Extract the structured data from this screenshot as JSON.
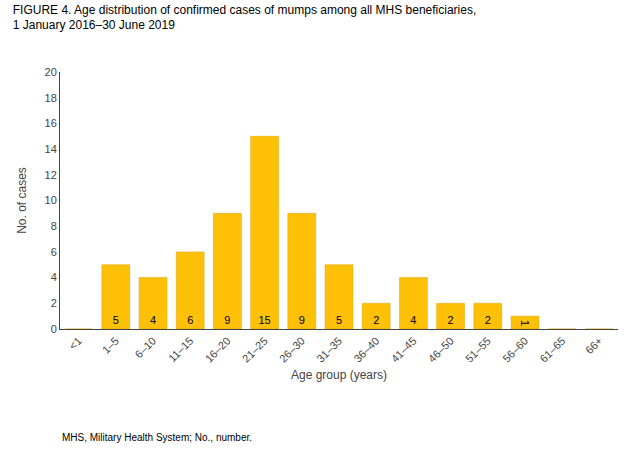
{
  "chart_data": {
    "type": "bar",
    "title": "FIGURE 4. Age distribution of confirmed cases of mumps among all MHS beneficiaries,\n1 January 2016–30 June 2019",
    "xlabel": "Age group (years)",
    "ylabel": "No. of cases",
    "categories": [
      "<1",
      "1–5",
      "6–10",
      "11–15",
      "16–20",
      "21–25",
      "26–30",
      "31–35",
      "36–40",
      "41–45",
      "46–50",
      "51–55",
      "56–60",
      "61–65",
      "66+"
    ],
    "values": [
      0,
      5,
      4,
      6,
      9,
      15,
      9,
      5,
      2,
      4,
      2,
      2,
      1,
      0,
      0
    ],
    "color": "#FFC107",
    "ylim": [
      0,
      20
    ],
    "yticks": [
      0,
      2,
      4,
      6,
      8,
      10,
      12,
      14,
      16,
      18,
      20
    ],
    "grid": false,
    "data_labels": true,
    "annotations": [
      "MHS, Military Health System; No., number."
    ]
  }
}
